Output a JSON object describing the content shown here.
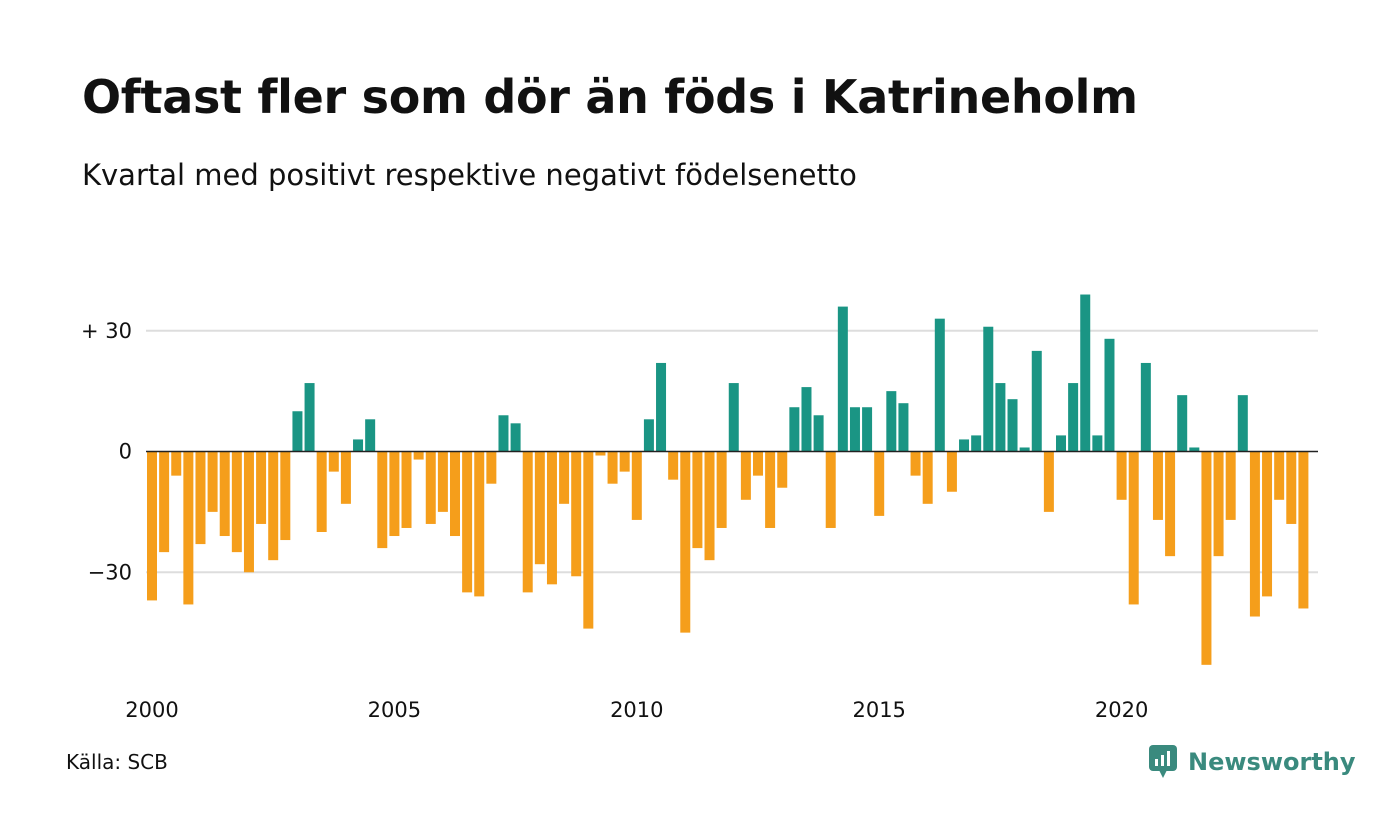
{
  "title": "Oftast fler som dör än föds i Katrineholm",
  "subtitle": "Kvartal med positivt respektive negativt födelsenetto",
  "source": "Källa: SCB",
  "brand": "Newsworthy",
  "colors": {
    "positive": "#1a9584",
    "negative": "#f59e1b",
    "grid": "#dddddd",
    "brand": "#3a8a7e"
  },
  "chart_data": {
    "type": "bar",
    "first_period": "2000Q1",
    "periods_per_year": 4,
    "x_tick_labels": [
      "2000",
      "2005",
      "2010",
      "2015",
      "2020"
    ],
    "y_ticks": [
      30,
      0,
      -30
    ],
    "y_tick_labels": [
      "+ 30",
      "0",
      "−30"
    ],
    "ylim": [
      -55,
      42
    ],
    "values": [
      -37,
      -25,
      -6,
      -38,
      -23,
      -15,
      -21,
      -25,
      -30,
      -18,
      -27,
      -22,
      10,
      17,
      -20,
      -5,
      -13,
      3,
      8,
      -24,
      -21,
      -19,
      -2,
      -18,
      -15,
      -21,
      -35,
      -36,
      -8,
      9,
      7,
      -35,
      -28,
      -33,
      -13,
      -31,
      -44,
      -1,
      -8,
      -5,
      -17,
      8,
      22,
      -7,
      -45,
      -24,
      -27,
      -19,
      17,
      -12,
      -6,
      -19,
      -9,
      11,
      16,
      9,
      -19,
      36,
      11,
      11,
      -16,
      15,
      12,
      -6,
      -13,
      33,
      -10,
      3,
      4,
      31,
      17,
      13,
      1,
      25,
      -15,
      4,
      17,
      39,
      4,
      28,
      -12,
      -38,
      22,
      -17,
      -26,
      14,
      1,
      -53,
      -26,
      -17,
      14,
      -41,
      -36,
      -12,
      -18,
      -39
    ]
  }
}
